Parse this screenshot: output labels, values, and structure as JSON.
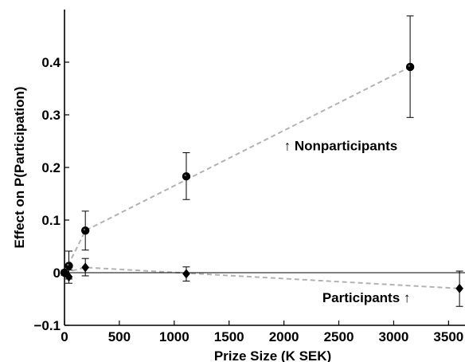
{
  "chart_data": {
    "type": "scatter",
    "title": "",
    "xlabel": "Prize Size (K SEK)",
    "ylabel": "Effect on P(Participation)",
    "xlim": [
      0,
      3650
    ],
    "ylim": [
      -0.1,
      0.5
    ],
    "xticks": [
      0,
      500,
      1000,
      1500,
      2000,
      2500,
      3000,
      3500
    ],
    "yticks": [
      -0.1,
      0,
      0.1,
      0.2,
      0.3,
      0.4
    ],
    "xtick_labels": [
      "0",
      "500",
      "1000",
      "1500",
      "2000",
      "2500",
      "3000",
      "3500"
    ],
    "ytick_labels": [
      "−0.1",
      "0",
      "0.1",
      "0.2",
      "0.3",
      "0.4"
    ],
    "zero_line": true,
    "grid": false,
    "series": [
      {
        "marker": "circle",
        "points": [
          {
            "x": 0,
            "y": 0.0,
            "lo": -0.003,
            "hi": 0.003
          },
          {
            "x": 40,
            "y": 0.013,
            "lo": -0.012,
            "hi": 0.041
          },
          {
            "x": 190,
            "y": 0.08,
            "lo": 0.043,
            "hi": 0.117
          },
          {
            "x": 1110,
            "y": 0.183,
            "lo": 0.139,
            "hi": 0.228
          },
          {
            "x": 3150,
            "y": 0.391,
            "lo": 0.295,
            "hi": 0.488
          }
        ],
        "fit_line": [
          [
            0,
            0.0
          ],
          [
            190,
            0.08
          ],
          [
            3150,
            0.391
          ]
        ]
      },
      {
        "marker": "diamond",
        "points": [
          {
            "x": 0,
            "y": 0.0,
            "lo": -0.005,
            "hi": 0.005
          },
          {
            "x": 40,
            "y": -0.008,
            "lo": -0.02,
            "hi": 0.005
          },
          {
            "x": 190,
            "y": 0.01,
            "lo": -0.006,
            "hi": 0.027
          },
          {
            "x": 1110,
            "y": -0.002,
            "lo": -0.016,
            "hi": 0.011
          },
          {
            "x": 3600,
            "y": -0.03,
            "lo": -0.064,
            "hi": 0.003
          }
        ],
        "fit_line": [
          [
            0,
            0.0
          ],
          [
            190,
            0.01
          ],
          [
            3600,
            -0.03
          ]
        ]
      }
    ],
    "annotations": [
      {
        "text": "↑ Nonparticipants",
        "x": 2000,
        "y": 0.242
      },
      {
        "text": "Participants ↑",
        "x": 2350,
        "y": -0.047
      }
    ],
    "colors": {
      "axis": "#000000",
      "marker": "#000000",
      "fit_line": "#b3b3b3"
    }
  }
}
